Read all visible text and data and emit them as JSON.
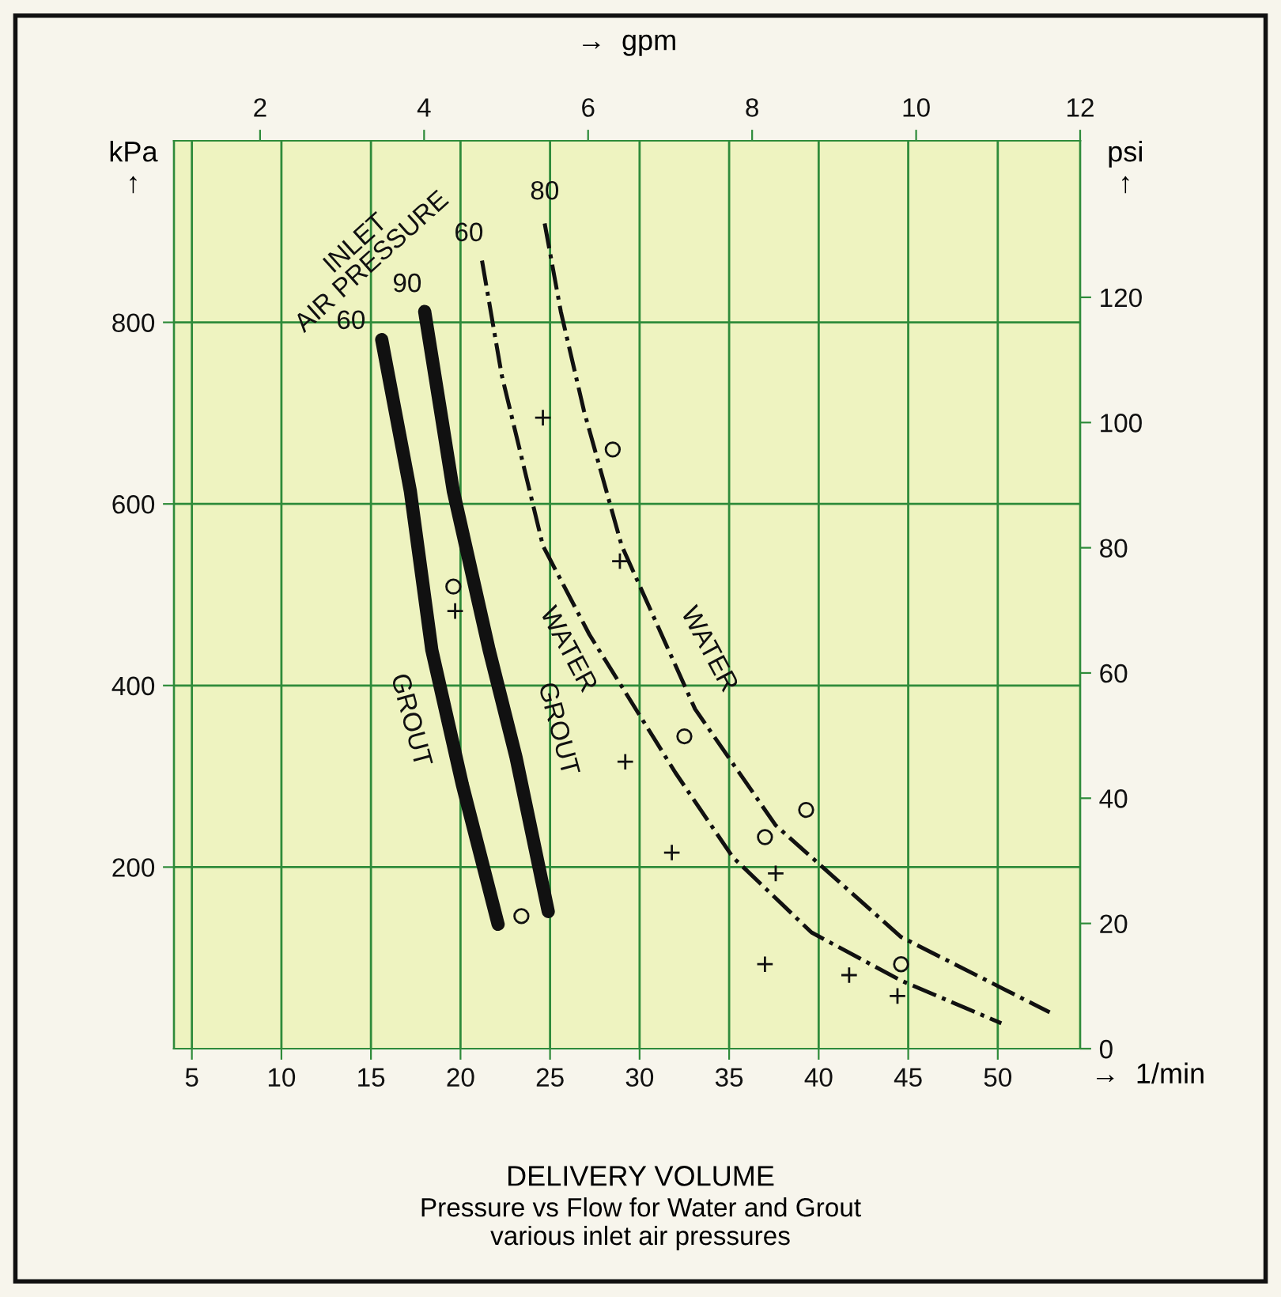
{
  "chart_data": {
    "type": "line",
    "title": "DELIVERY VOLUME",
    "subtitle": "Pressure vs Flow for Water and Grout\nvarious inlet air pressures",
    "xlabel": "→  1/min",
    "x2label": "→  gpm",
    "ylabel": "kPa\n↑",
    "y2label": "psi\n↑",
    "xlim": [
      4,
      54.6
    ],
    "xticks": [
      5,
      10,
      15,
      20,
      25,
      30,
      35,
      40,
      45,
      50
    ],
    "x2lim": [
      0.95,
      12
    ],
    "x2ticks": [
      2,
      4,
      6,
      8,
      10,
      12
    ],
    "ylim": [
      0,
      1000
    ],
    "yticks": [
      200,
      400,
      600,
      800
    ],
    "y2lim": [
      0,
      145
    ],
    "y2ticks": [
      0,
      20,
      40,
      60,
      80,
      100,
      120
    ],
    "grid": true,
    "series": [
      {
        "color": "#111111",
        "line_style": "solid",
        "x": [
          15.6,
          17.2,
          18.4,
          20.1,
          22.1
        ],
        "values": [
          781,
          614,
          439,
          291,
          137
        ]
      },
      {
        "color": "#111111",
        "line_style": "solid",
        "x": [
          18.0,
          19.6,
          21.6,
          23.1,
          24.9
        ],
        "values": [
          812,
          614,
          439,
          321,
          151
        ]
      },
      {
        "color": "#111111",
        "line_style": "dashdot",
        "x": [
          21.2,
          22.3,
          24.6,
          27.2,
          32.0,
          35.2,
          39.6,
          44.6,
          50.2
        ],
        "values": [
          868,
          742,
          554,
          456,
          304,
          211,
          128,
          75,
          28
        ]
      },
      {
        "color": "#111111",
        "line_style": "dashdot",
        "x": [
          24.7,
          25.6,
          26.9,
          29.0,
          33.1,
          37.6,
          44.6,
          52.9
        ],
        "values": [
          909,
          812,
          702,
          554,
          374,
          246,
          123,
          40
        ]
      },
      {
        "type": "scatter",
        "color": "#111111",
        "marker": "cross",
        "x": [
          24.6,
          28.9,
          19.7,
          29.2,
          31.8,
          37.6,
          37.0,
          41.7,
          44.4
        ],
        "values": [
          695,
          537,
          482,
          316,
          216,
          193,
          93,
          81,
          58
        ]
      },
      {
        "type": "scatter",
        "color": "#111111",
        "marker": "circle",
        "x": [
          28.5,
          32.5,
          39.3,
          37.0,
          44.6,
          19.6,
          23.4
        ],
        "values": [
          660,
          344,
          263,
          233,
          93,
          509,
          146
        ]
      }
    ],
    "annotations": [
      "INLET\nAIR PRESSURE",
      {
        "text": "60",
        "x": 15.6,
        "y": 781
      },
      {
        "text": "90",
        "x": 18.0,
        "y": 812
      },
      {
        "text": "60",
        "x": 21.2,
        "y": 868
      },
      {
        "text": "80",
        "x": 24.7,
        "y": 909
      },
      {
        "text": "GROUT",
        "x": 18.4,
        "y": 439
      },
      {
        "text": "GROUT",
        "x": 21.6,
        "y": 439
      },
      {
        "text": "WATER",
        "x": 27.2,
        "y": 456
      },
      {
        "text": "WATER",
        "x": 33.1,
        "y": 374
      }
    ]
  }
}
